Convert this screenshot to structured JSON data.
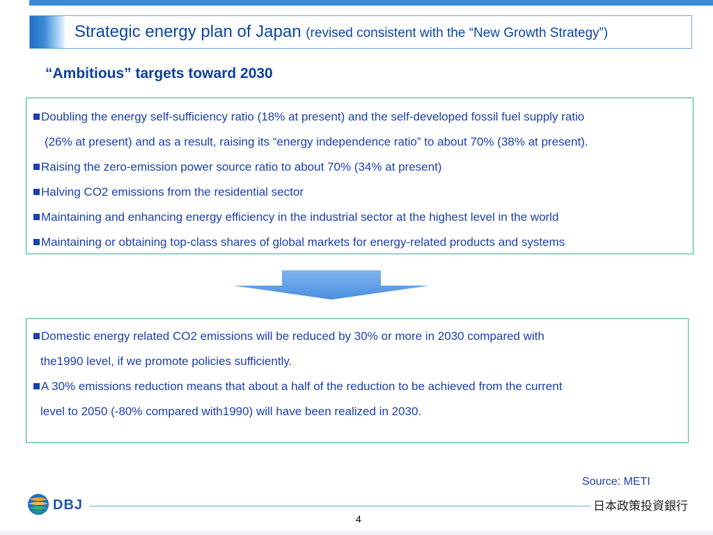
{
  "header": {
    "title_main": "Strategic energy plan of Japan",
    "title_sub": "(revised consistent with the “New Growth Strategy”)"
  },
  "section_heading": "“Ambitious” targets toward 2030",
  "targets_box": {
    "bullet_1_line_1": "Doubling the energy self-sufficiency ratio (18% at present) and the self-developed fossil fuel supply ratio",
    "bullet_1_line_2": "(26% at present) and as a result, raising its “energy independence ratio” to about 70% (38% at present).",
    "bullet_2": "Raising the zero-emission power source ratio to about 70% (34% at present)",
    "bullet_3": "Halving CO2 emissions from the residential sector",
    "bullet_4": "Maintaining and enhancing energy efficiency in the industrial sector at the highest level in the world",
    "bullet_5": "Maintaining or obtaining top-class shares of global markets for energy-related products and systems"
  },
  "results_box": {
    "bullet_1_line_1": "Domestic energy related CO2 emissions will be reduced by 30% or more in 2030 compared with",
    "bullet_1_line_2": "the1990 level, if we promote policies sufficiently.",
    "bullet_2_line_1": "A 30% emissions reduction means that about a half of the reduction to be achieved from the current",
    "bullet_2_line_2": "level to 2050 (-80% compared with1990) will have been realized in 2030."
  },
  "source": "Source: METI",
  "footer": {
    "logo_text": "DBJ",
    "bank_name": "日本政策投資銀行",
    "page_number": "4"
  },
  "colors": {
    "title_blue": "#0a46a8",
    "text_blue": "#1a3fb0",
    "box_border_green": "#34b08a",
    "arrow_blue": "#5b9be8"
  },
  "icons": {
    "arrow": "down-arrow-icon",
    "logo": "dbj-globe-logo-icon",
    "bullet": "square-bullet-icon"
  }
}
